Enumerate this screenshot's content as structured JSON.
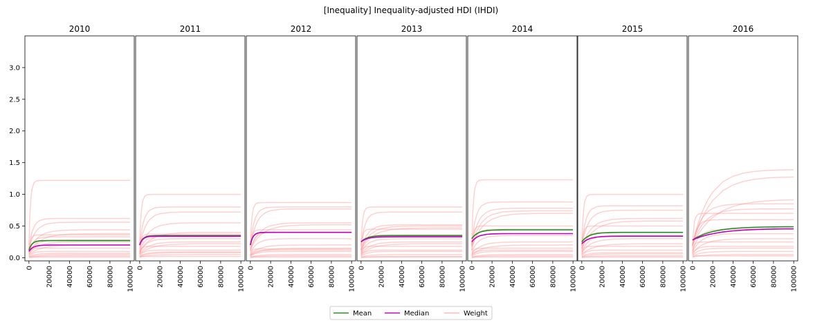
{
  "chart_data": {
    "type": "line",
    "title": "[Inequality] Inequality-adjusted HDI (IHDI)",
    "panels": [
      "2010",
      "2011",
      "2012",
      "2013",
      "2014",
      "2015",
      "2016"
    ],
    "x_ticks": [
      "0",
      "20000",
      "40000",
      "60000",
      "80000",
      "100000"
    ],
    "y_ticks": [
      "0.0",
      "0.5",
      "1.0",
      "1.5",
      "2.0",
      "2.5",
      "3.0"
    ],
    "xlim": [
      -4000,
      104000
    ],
    "ylim": [
      -0.05,
      3.5
    ],
    "legend": {
      "placement": "bottom-center",
      "entries": [
        {
          "label": "Mean",
          "color": "#228B22"
        },
        {
          "label": "Median",
          "color": "#BF00BF"
        },
        {
          "label": "Weight",
          "color": "#FFB6B6"
        }
      ]
    },
    "curve_x": [
      0,
      500,
      1000,
      2000,
      3000,
      5000,
      7500,
      10000,
      15000,
      20000,
      30000,
      40000,
      50000,
      60000,
      70000,
      80000,
      90000,
      100000
    ],
    "mean": [
      {
        "plateau": 0.27,
        "start": 0.12,
        "k": 3000
      },
      {
        "plateau": 0.35,
        "start": 0.2,
        "k": 3000
      },
      {
        "plateau": 0.4,
        "start": 0.2,
        "k": 2500
      },
      {
        "plateau": 0.35,
        "start": 0.25,
        "k": 6000
      },
      {
        "plateau": 0.44,
        "start": 0.3,
        "k": 6000
      },
      {
        "plateau": 0.4,
        "start": 0.25,
        "k": 7000
      },
      {
        "plateau": 0.49,
        "start": 0.28,
        "k": 20000
      }
    ],
    "median": [
      {
        "plateau": 0.2,
        "start": 0.1,
        "k": 4000
      },
      {
        "plateau": 0.34,
        "start": 0.2,
        "k": 3000
      },
      {
        "plateau": 0.4,
        "start": 0.2,
        "k": 2500
      },
      {
        "plateau": 0.33,
        "start": 0.25,
        "k": 6000
      },
      {
        "plateau": 0.38,
        "start": 0.25,
        "k": 6000
      },
      {
        "plateau": 0.34,
        "start": 0.22,
        "k": 7000
      },
      {
        "plateau": 0.46,
        "start": 0.28,
        "k": 25000
      }
    ],
    "weights": [
      [
        1.22,
        0.62,
        0.56,
        0.44,
        0.38,
        0.36,
        0.33,
        0.28,
        0.25,
        0.2,
        0.15,
        0.1,
        0.07,
        0.05,
        0.03,
        0.01
      ],
      [
        1.0,
        0.8,
        0.72,
        0.55,
        0.4,
        0.37,
        0.33,
        0.3,
        0.25,
        0.22,
        0.18,
        0.12,
        0.09,
        0.08,
        0.05,
        0.02
      ],
      [
        0.87,
        0.8,
        0.77,
        0.55,
        0.52,
        0.44,
        0.4,
        0.3,
        0.2,
        0.15,
        0.14,
        0.12,
        0.1,
        0.05,
        0.03,
        0.01
      ],
      [
        0.8,
        0.72,
        0.52,
        0.5,
        0.47,
        0.45,
        0.36,
        0.3,
        0.25,
        0.22,
        0.18,
        0.12,
        0.1,
        0.05,
        0.02,
        0.01
      ],
      [
        1.23,
        0.88,
        0.78,
        0.74,
        0.7,
        0.5,
        0.45,
        0.35,
        0.25,
        0.2,
        0.15,
        0.12,
        0.1,
        0.05,
        0.03,
        0.01
      ],
      [
        1.0,
        0.82,
        0.75,
        0.62,
        0.58,
        0.5,
        0.4,
        0.35,
        0.3,
        0.22,
        0.18,
        0.12,
        0.08,
        0.06,
        0.03,
        0.01
      ],
      [
        1.39,
        1.28,
        0.92,
        0.85,
        0.77,
        0.7,
        0.6,
        0.45,
        0.38,
        0.3,
        0.25,
        0.18,
        0.15,
        0.1,
        0.05,
        0.03
      ]
    ]
  }
}
